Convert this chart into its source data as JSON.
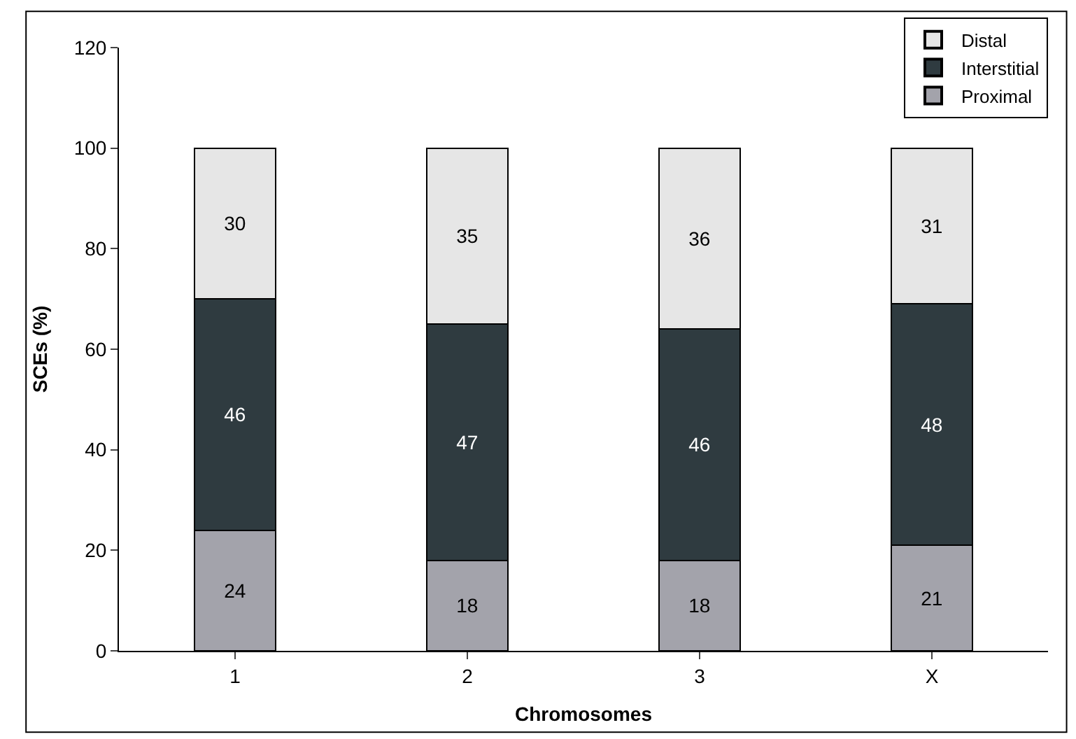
{
  "chart_data": {
    "type": "bar",
    "stacked": true,
    "xlabel": "Chromosomes",
    "ylabel": "SCEs (%)",
    "categories": [
      "1",
      "2",
      "3",
      "X"
    ],
    "series": [
      {
        "name": "Proximal",
        "color": "#a3a3ab",
        "values": [
          24,
          18,
          18,
          21
        ]
      },
      {
        "name": "Interstitial",
        "color": "#2f3b40",
        "values": [
          46,
          47,
          46,
          48
        ]
      },
      {
        "name": "Distal",
        "color": "#e6e6e6",
        "values": [
          30,
          35,
          36,
          31
        ]
      }
    ],
    "ylim": [
      0,
      120
    ],
    "yticks": [
      0,
      20,
      40,
      60,
      80,
      100,
      120
    ],
    "data_labels": true,
    "legend": "top right",
    "grid": false
  }
}
